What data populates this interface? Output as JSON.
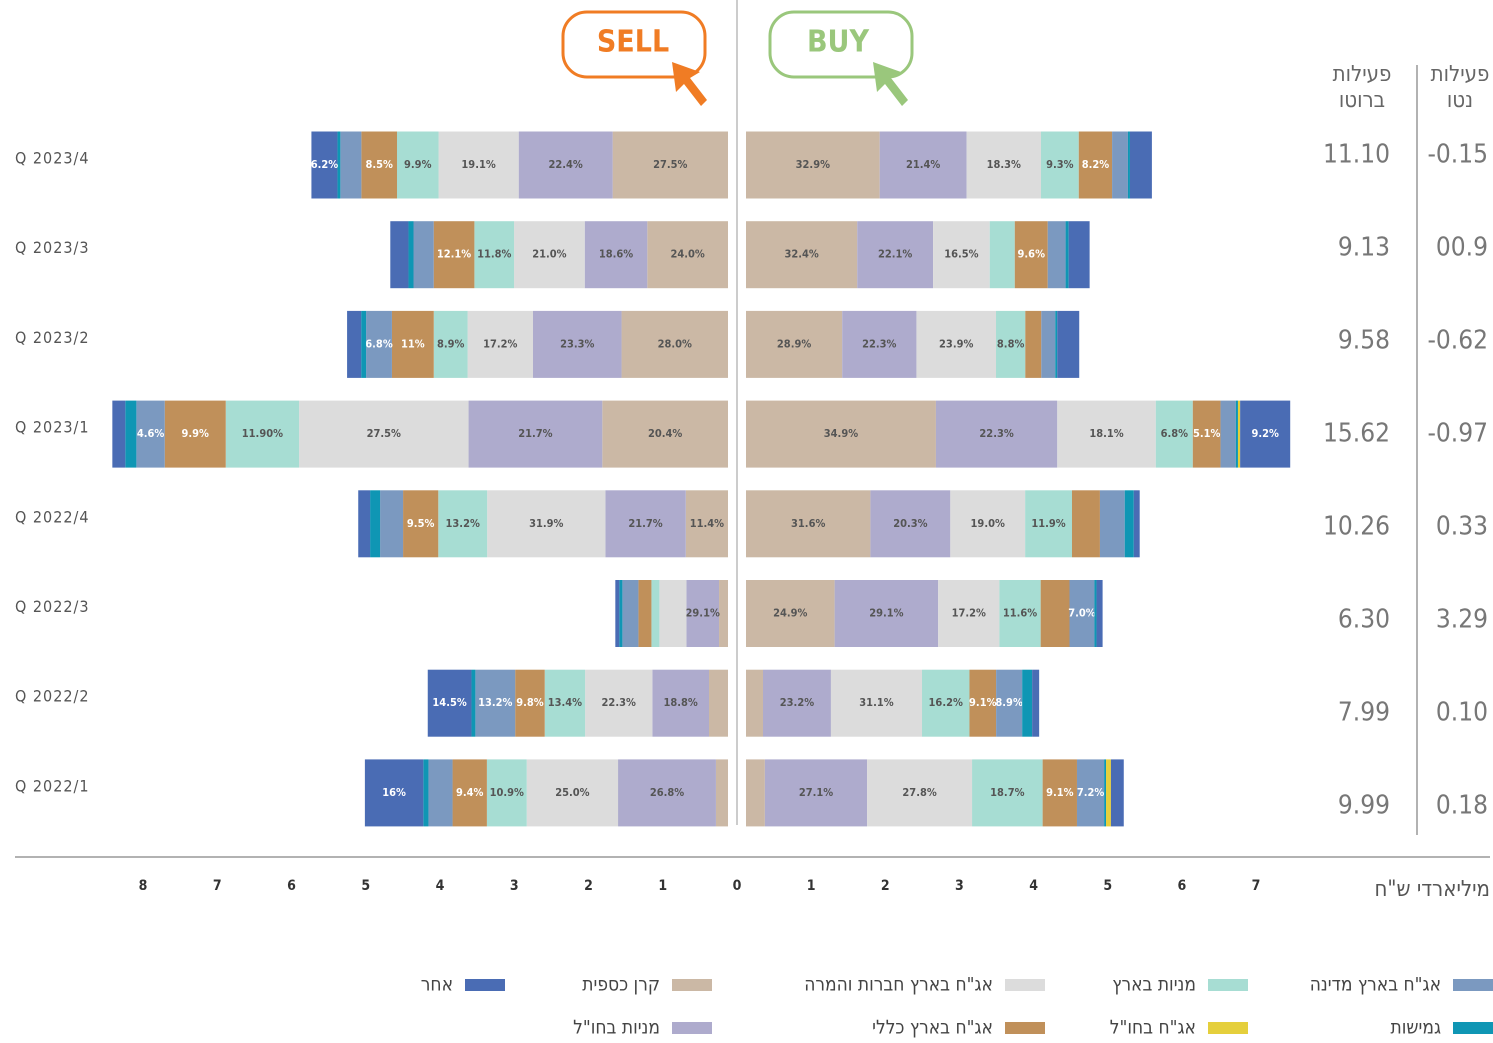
{
  "chart_data": {
    "type": "diverging_stacked_bar",
    "sell_button": "SELL",
    "buy_button": "BUY",
    "categories": [
      "Q 2023/4",
      "Q 2023/3",
      "Q 2023/2",
      "Q 2023/1",
      "Q 2022/4",
      "Q 2022/3",
      "Q 2022/2",
      "Q 2022/1"
    ],
    "sell_totals": [
      5.65,
      4.53,
      5.12,
      8.3,
      4.99,
      1.51,
      4.06,
      4.92
    ],
    "buy_totals": [
      5.48,
      4.63,
      4.49,
      7.34,
      5.31,
      4.8,
      3.95,
      5.09
    ],
    "xlim_sell": [
      0,
      8
    ],
    "xticks_sell": [
      1,
      2,
      3,
      4,
      5,
      6,
      7,
      8
    ],
    "xlim": [
      0,
      7
    ],
    "xticks": [
      0,
      1,
      2,
      3,
      4,
      5,
      6,
      7
    ],
    "x_axis_label": "מיליארדי ש\"ח",
    "gross_header": [
      "פעילות",
      "ברוטו"
    ],
    "net_header": [
      "פעילות",
      "נטו"
    ],
    "gross": [
      "11.10",
      "9.13",
      "9.58",
      "15.62",
      "10.26",
      "6.30",
      "7.99",
      "9.99"
    ],
    "net": [
      "-0.15",
      "00.9",
      "-0.62",
      "-0.97",
      "0.33",
      "3.29",
      "0.10",
      "0.18"
    ],
    "series": [
      {
        "name": "קרן כספית",
        "color": "#cbb8a5",
        "sell_values": [
          27.5,
          24.0,
          28.0,
          20.4,
          11.4,
          8.0,
          6.3,
          3.3
        ],
        "sell_value_labels": [
          "27.5%",
          "24.0%",
          "28.0%",
          "20.4%",
          "11.4%",
          null,
          null,
          null
        ],
        "buy_values": [
          32.9,
          32.4,
          28.9,
          34.9,
          31.6,
          24.9,
          5.8,
          5.0
        ],
        "buy_value_labels": [
          "32.9%",
          "32.4%",
          "28.9%",
          "34.9%",
          "31.6%",
          "24.9%",
          null,
          null
        ]
      },
      {
        "name": "מניות בחו\"ל",
        "color": "#aeabcd",
        "sell_values": [
          22.4,
          18.6,
          23.3,
          21.7,
          21.7,
          29.1,
          18.8,
          26.8
        ],
        "sell_value_labels": [
          "22.4%",
          "18.6%",
          "23.3%",
          "21.7%",
          "21.7%",
          "29.1%",
          "18.8%",
          "26.8%"
        ],
        "buy_values": [
          21.4,
          22.1,
          22.3,
          22.3,
          20.3,
          29.1,
          23.2,
          27.1
        ],
        "buy_value_labels": [
          "21.4%",
          "22.1%",
          "22.3%",
          "22.3%",
          "20.3%",
          "29.1%",
          "23.2%",
          "27.1%"
        ]
      },
      {
        "name": "אג\"ח בארץ חברות והמרה",
        "color": "#dcdcdc",
        "sell_values": [
          19.1,
          21.0,
          17.2,
          27.5,
          31.9,
          24.1,
          22.3,
          25.0
        ],
        "sell_value_labels": [
          "19.1%",
          "21.0%",
          "17.2%",
          "27.5%",
          "31.9%",
          null,
          "22.3%",
          "25.0%"
        ],
        "buy_values": [
          18.3,
          16.5,
          23.9,
          18.1,
          19.0,
          17.2,
          31.1,
          27.8
        ],
        "buy_value_labels": [
          "18.3%",
          "16.5%",
          "23.9%",
          "18.1%",
          "19.0%",
          "17.2%",
          "31.1%",
          "27.8%"
        ]
      },
      {
        "name": "מניות בארץ",
        "color": "#a7ddd3",
        "sell_values": [
          9.9,
          11.8,
          8.9,
          11.9,
          13.2,
          7.1,
          13.4,
          10.9
        ],
        "sell_value_labels": [
          "9.9%",
          "11.8%",
          "8.9%",
          "11.90%",
          "13.2%",
          null,
          "13.4%",
          "10.9%"
        ],
        "buy_values": [
          9.3,
          7.3,
          8.8,
          6.8,
          11.9,
          11.6,
          16.2,
          18.7
        ],
        "buy_value_labels": [
          "9.3%",
          null,
          "8.8%",
          "6.8%",
          "11.9%",
          "11.6%",
          "16.2%",
          "18.7%"
        ]
      },
      {
        "name": "אג\"ח בארץ כללי",
        "color": "#c0905a",
        "sell_values": [
          8.5,
          12.1,
          11,
          9.9,
          9.5,
          11.6,
          9.8,
          9.4
        ],
        "sell_value_labels": [
          "8.5%",
          "12.1%",
          "11%",
          "9.9%",
          "9.5%",
          null,
          "9.8%",
          "9.4%"
        ],
        "buy_values": [
          8.2,
          9.6,
          4.8,
          5.1,
          7.1,
          8.1,
          9.1,
          9.1
        ],
        "buy_value_labels": [
          "8.2%",
          "9.6%",
          null,
          "5.1%",
          null,
          null,
          "9.1%",
          "9.1%"
        ]
      },
      {
        "name": "אג\"ח בארץ מדינה",
        "color": "#7b99c0",
        "sell_values": [
          5.0,
          6.0,
          6.8,
          4.6,
          6.2,
          14.3,
          13.2,
          6.6
        ],
        "sell_value_labels": [
          null,
          null,
          "6.8%",
          "4.6%",
          null,
          null,
          "13.2%",
          null
        ],
        "buy_values": [
          3.9,
          5.2,
          4.2,
          2.8,
          6.3,
          7.0,
          8.9,
          7.2
        ],
        "buy_value_labels": [
          null,
          null,
          null,
          null,
          null,
          "7.0%",
          "8.9%",
          "7.2%"
        ]
      },
      {
        "name": "גמישות",
        "color": "#0f96b4",
        "sell_values": [
          0.7,
          1.5,
          1.3,
          1.8,
          2.7,
          2.7,
          1.3,
          1.4
        ],
        "sell_value_labels": [
          null,
          null,
          null,
          null,
          null,
          null,
          null,
          null
        ],
        "buy_values": [
          0.5,
          0.9,
          0.6,
          0.4,
          2.3,
          0.6,
          3.4,
          0.5
        ],
        "buy_value_labels": [
          null,
          null,
          null,
          null,
          null,
          null,
          null,
          null
        ]
      },
      {
        "name": "אג\"ח בחו\"ל",
        "color": "#e5cf3c",
        "sell_values": [
          null,
          null,
          null,
          null,
          null,
          null,
          null,
          null
        ],
        "sell_value_labels": [
          null,
          null,
          null,
          null,
          null,
          null,
          null,
          null
        ],
        "buy_values": [
          null,
          null,
          null,
          0.4,
          null,
          null,
          null,
          1.3
        ],
        "buy_value_labels": [
          null,
          null,
          null,
          null,
          null,
          null,
          null,
          null
        ]
      },
      {
        "name": "אחר",
        "color": "#4a6cb4",
        "sell_values": [
          6.2,
          5.4,
          3.7,
          2.1,
          3.2,
          3.6,
          14.5,
          16
        ],
        "sell_value_labels": [
          "6.2%",
          null,
          null,
          null,
          null,
          null,
          "14.5%",
          "16%"
        ],
        "buy_values": [
          5.4,
          6.1,
          6.6,
          9.2,
          1.5,
          1.7,
          2.4,
          3.4
        ],
        "buy_value_labels": [
          null,
          null,
          null,
          "9.2%",
          null,
          null,
          null,
          null
        ]
      }
    ]
  }
}
